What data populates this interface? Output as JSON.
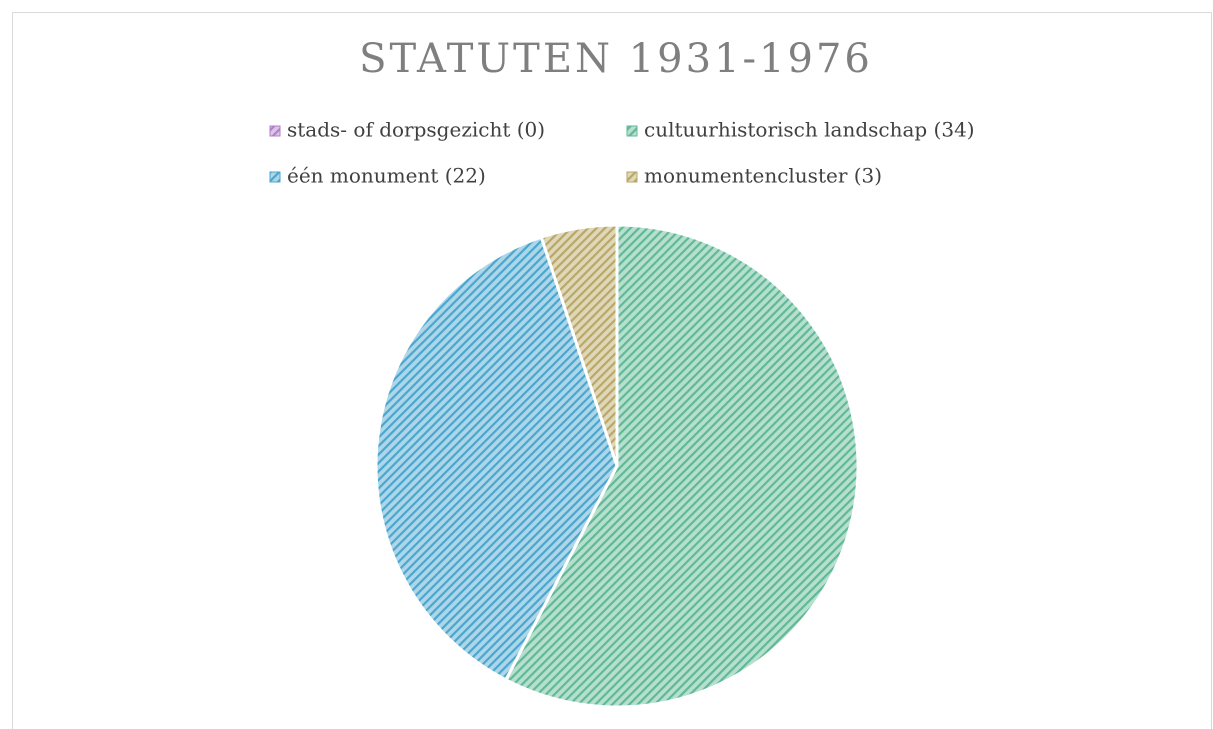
{
  "chart_data": {
    "type": "pie",
    "title": "STATUTEN 1931-1976",
    "categories": [
      "stads- of dorpsgezicht (0)",
      "cultuurhistorisch landschap (34)",
      "één monument (22)",
      "monumentencluster (3)"
    ],
    "values": [
      0,
      34,
      22,
      3
    ],
    "colors": [
      "#b27fc9",
      "#5fb995",
      "#4aa6cf",
      "#b9a766"
    ]
  }
}
